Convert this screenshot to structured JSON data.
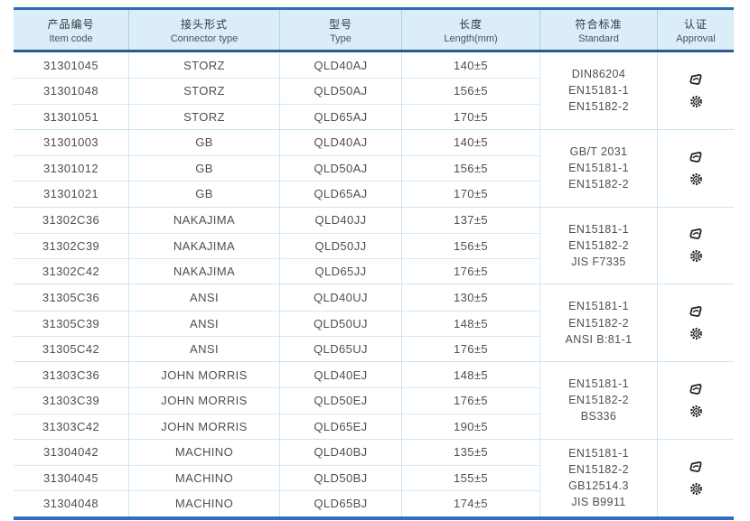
{
  "colors": {
    "header_bg": "#daedf9",
    "border_top": "#2e6db4",
    "header_border_bottom": "#2a5a8e",
    "table_border_bottom": "#2f6fbe",
    "row_separator": "#d2e9f8",
    "column_separator": "#cde7f7",
    "text": "#4f4f4f",
    "icon": "#222222"
  },
  "table": {
    "columns": [
      {
        "key": "item_code",
        "zh": "产品编号",
        "en": "Item code"
      },
      {
        "key": "connector_type",
        "zh": "接头形式",
        "en": "Connector type"
      },
      {
        "key": "type",
        "zh": "型号",
        "en": "Type"
      },
      {
        "key": "length",
        "zh": "长度",
        "en": "Length(mm)"
      },
      {
        "key": "standard",
        "zh": "符合标准",
        "en": "Standard"
      },
      {
        "key": "approval",
        "zh": "认证",
        "en": "Approval"
      }
    ],
    "groups": [
      {
        "rows": [
          {
            "item_code": "31301045",
            "connector_type": "STORZ",
            "type": "QLD40AJ",
            "length": "140±5"
          },
          {
            "item_code": "31301048",
            "connector_type": "STORZ",
            "type": "QLD50AJ",
            "length": "156±5"
          },
          {
            "item_code": "31301051",
            "connector_type": "STORZ",
            "type": "QLD65AJ",
            "length": "170±5"
          }
        ],
        "standards": [
          "DIN86204",
          "EN15181-1",
          "EN15182-2"
        ],
        "approval_icons": [
          "certification-logo-icon",
          "wheelmark-icon"
        ]
      },
      {
        "rows": [
          {
            "item_code": "31301003",
            "connector_type": "GB",
            "type": "QLD40AJ",
            "length": "140±5"
          },
          {
            "item_code": "31301012",
            "connector_type": "GB",
            "type": "QLD50AJ",
            "length": "156±5"
          },
          {
            "item_code": "31301021",
            "connector_type": "GB",
            "type": "QLD65AJ",
            "length": "170±5"
          }
        ],
        "standards": [
          "GB/T 2031",
          "EN15181-1",
          "EN15182-2"
        ],
        "approval_icons": [
          "certification-logo-icon",
          "wheelmark-icon"
        ]
      },
      {
        "rows": [
          {
            "item_code": "31302C36",
            "connector_type": "NAKAJIMA",
            "type": "QLD40JJ",
            "length": "137±5"
          },
          {
            "item_code": "31302C39",
            "connector_type": "NAKAJIMA",
            "type": "QLD50JJ",
            "length": "156±5"
          },
          {
            "item_code": "31302C42",
            "connector_type": "NAKAJIMA",
            "type": "QLD65JJ",
            "length": "176±5"
          }
        ],
        "standards": [
          "EN15181-1",
          "EN15182-2",
          "JIS F7335"
        ],
        "approval_icons": [
          "certification-logo-icon",
          "wheelmark-icon"
        ]
      },
      {
        "rows": [
          {
            "item_code": "31305C36",
            "connector_type": "ANSI",
            "type": "QLD40UJ",
            "length": "130±5"
          },
          {
            "item_code": "31305C39",
            "connector_type": "ANSI",
            "type": "QLD50UJ",
            "length": "148±5"
          },
          {
            "item_code": "31305C42",
            "connector_type": "ANSI",
            "type": "QLD65UJ",
            "length": "176±5"
          }
        ],
        "standards": [
          "EN15181-1",
          "EN15182-2",
          "ANSI B:81-1"
        ],
        "approval_icons": [
          "certification-logo-icon",
          "wheelmark-icon"
        ]
      },
      {
        "rows": [
          {
            "item_code": "31303C36",
            "connector_type": "JOHN MORRIS",
            "type": "QLD40EJ",
            "length": "148±5"
          },
          {
            "item_code": "31303C39",
            "connector_type": "JOHN MORRIS",
            "type": "QLD50EJ",
            "length": "176±5"
          },
          {
            "item_code": "31303C42",
            "connector_type": "JOHN MORRIS",
            "type": "QLD65EJ",
            "length": "190±5"
          }
        ],
        "standards": [
          "EN15181-1",
          "EN15182-2",
          "BS336"
        ],
        "approval_icons": [
          "certification-logo-icon",
          "wheelmark-icon"
        ]
      },
      {
        "rows": [
          {
            "item_code": "31304042",
            "connector_type": "MACHINO",
            "type": "QLD40BJ",
            "length": "135±5"
          },
          {
            "item_code": "31304045",
            "connector_type": "MACHINO",
            "type": "QLD50BJ",
            "length": "155±5"
          },
          {
            "item_code": "31304048",
            "connector_type": "MACHINO",
            "type": "QLD65BJ",
            "length": "174±5"
          }
        ],
        "standards": [
          "EN15181-1",
          "EN15182-2",
          "GB12514.3",
          "JIS B9911"
        ],
        "approval_icons": [
          "certification-logo-icon",
          "wheelmark-icon"
        ]
      }
    ]
  }
}
